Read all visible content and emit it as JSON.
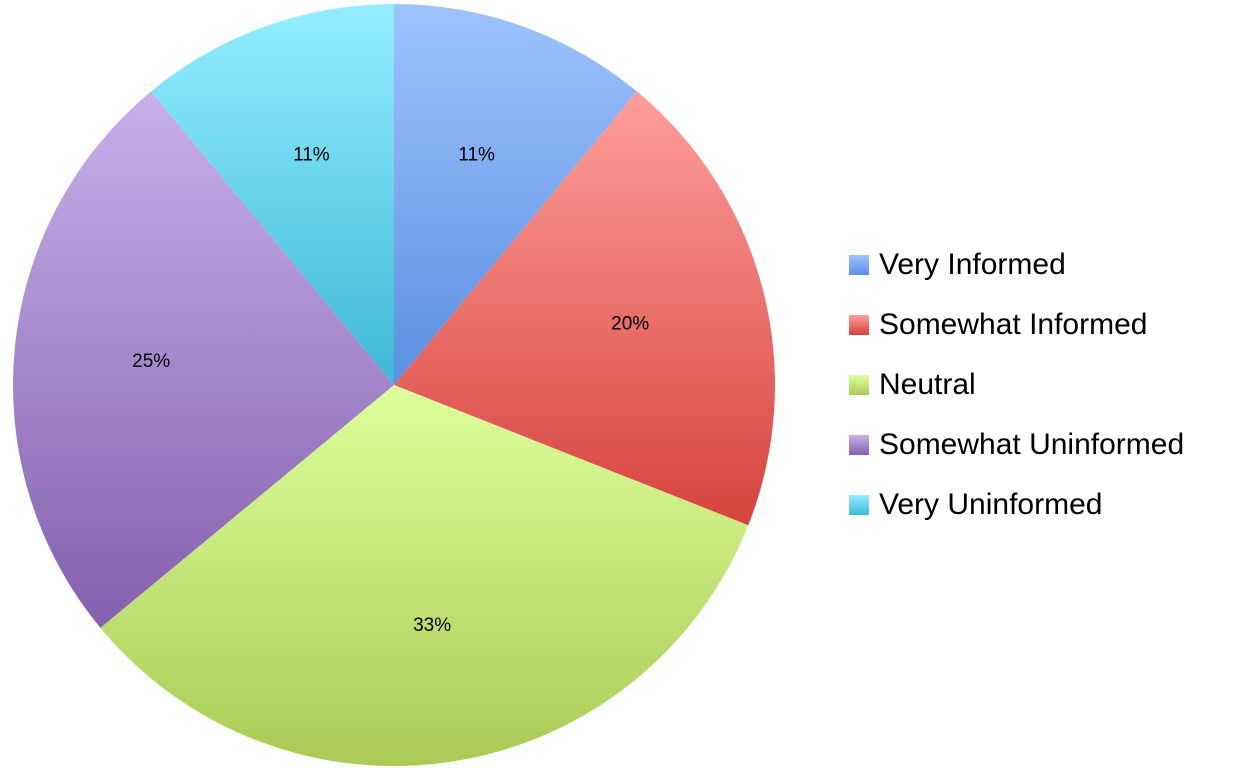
{
  "chart_data": {
    "type": "pie",
    "title": "",
    "legend_position": "right",
    "slices": [
      {
        "name": "Very Informed",
        "value": 11,
        "label": "11%",
        "color": "#5B8FE0",
        "color_light": "#9EC3FF"
      },
      {
        "name": "Somewhat Informed",
        "value": 20,
        "label": "20%",
        "color": "#D6433E",
        "color_light": "#FF9E9A"
      },
      {
        "name": "Neutral",
        "value": 33,
        "label": "33%",
        "color": "#A9CB55",
        "color_light": "#DDFF9B"
      },
      {
        "name": "Somewhat Uninformed",
        "value": 25,
        "label": "25%",
        "color": "#8360AE",
        "color_light": "#C8B0EA"
      },
      {
        "name": "Very Uninformed",
        "value": 11,
        "label": "11%",
        "color": "#3EB8D6",
        "color_light": "#93EEFF"
      }
    ]
  }
}
